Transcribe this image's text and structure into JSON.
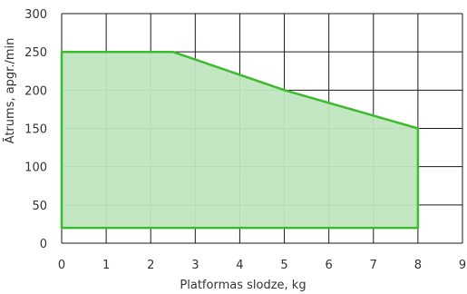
{
  "chart_data": {
    "type": "area",
    "xlabel": "Platformas slodze, kg",
    "ylabel": "Ātrums, apgr./min",
    "xlim": [
      0,
      9
    ],
    "ylim": [
      0,
      300
    ],
    "x_ticks": [
      "0",
      "1",
      "2",
      "3",
      "4",
      "5",
      "6",
      "7",
      "8",
      "9"
    ],
    "y_ticks": [
      "0",
      "50",
      "100",
      "150",
      "200",
      "250",
      "300"
    ],
    "grid": true,
    "series": [
      {
        "x": [
          0,
          2.5,
          5,
          8,
          8,
          0
        ],
        "y": [
          250,
          250,
          200,
          150,
          20,
          20
        ]
      }
    ],
    "colors": {
      "fill": "#bfe6bf",
      "stroke": "#3dbb2e",
      "grid": "#1a1a1a",
      "text": "#333333"
    }
  }
}
